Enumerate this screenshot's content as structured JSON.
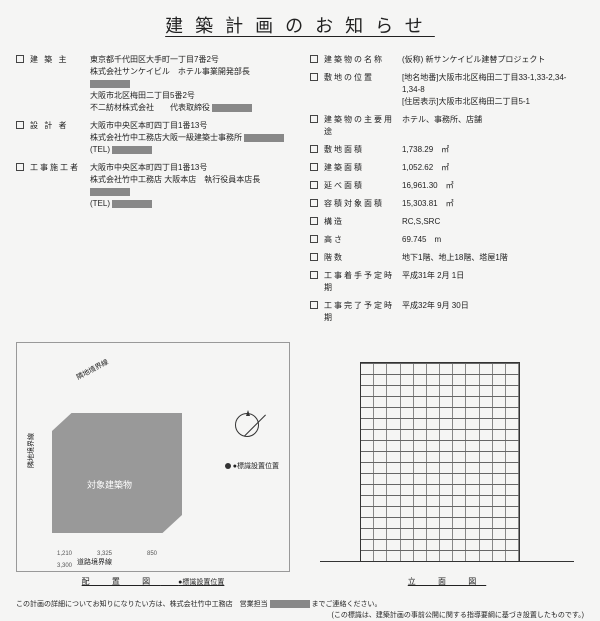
{
  "title": "建築計画のお知らせ",
  "left_items": [
    {
      "label": "建 築 主",
      "lines": [
        "東京都千代田区大手町一丁目7番2号",
        "株式会社サンケイビル　ホテル事業開発部長 [■]",
        "大阪市北区梅田二丁目5番2号",
        "不二紡材株式会社　　代表取締役 [■]"
      ]
    },
    {
      "label": "設 計 者",
      "lines": [
        "大阪市中央区本町四丁目1番13号",
        "株式会社竹中工務店大阪一級建築士事務所 [■]",
        "(TEL) [■]"
      ]
    },
    {
      "label": "工事施工者",
      "lines": [
        "大阪市中央区本町四丁目1番13号",
        "株式会社竹中工務店 大阪本店　執行役員本店長 [■]",
        "(TEL) [■]"
      ]
    }
  ],
  "right_items": [
    {
      "label": "建築物の名称",
      "val": "(仮称) 新サンケイビル建替プロジェクト"
    },
    {
      "label": "敷地の位置",
      "val": "[地名地番]大阪市北区梅田二丁目33-1,33-2,34-1,34-8\n[住居表示]大阪市北区梅田二丁目5-1"
    },
    {
      "label": "建築物の主要用途",
      "val": "ホテル、事務所、店舗"
    },
    {
      "label": "敷地面積",
      "val": "1,738.29　㎡"
    },
    {
      "label": "建築面積",
      "val": "1,052.62　㎡"
    },
    {
      "label": "延べ面積",
      "val": "16,961.30　㎡"
    },
    {
      "label": "容積対象面積",
      "val": "15,303.81　㎡"
    },
    {
      "label": "構造",
      "val": "RC,S,SRC"
    },
    {
      "label": "高さ",
      "val": "69.745　m"
    },
    {
      "label": "階数",
      "val": "地下1階、地上18階、塔屋1階"
    },
    {
      "label": "工事着手予定時期",
      "val": "平成31年 2月 1日"
    },
    {
      "label": "工事完了予定時期",
      "val": "平成32年 9月 30日"
    }
  ],
  "siteplan": {
    "label": "配 置 図",
    "marker_label": "●標識設置位置",
    "building_label": "対象建築物",
    "boundaries": [
      "隣地境界線",
      "隣地境界線",
      "道路境界線"
    ]
  },
  "elevation": {
    "label": "立 面 図",
    "floors": 18,
    "windows_per_floor": 12
  },
  "footer": {
    "line1": "この計画の詳細についてお知りになりたい方は、株式会社竹中工務店　営業担当 [■] までご連絡ください。",
    "line2": "(この標識は、建築計画の事前公開に関する指導要綱に基づき設置したものです。)"
  }
}
